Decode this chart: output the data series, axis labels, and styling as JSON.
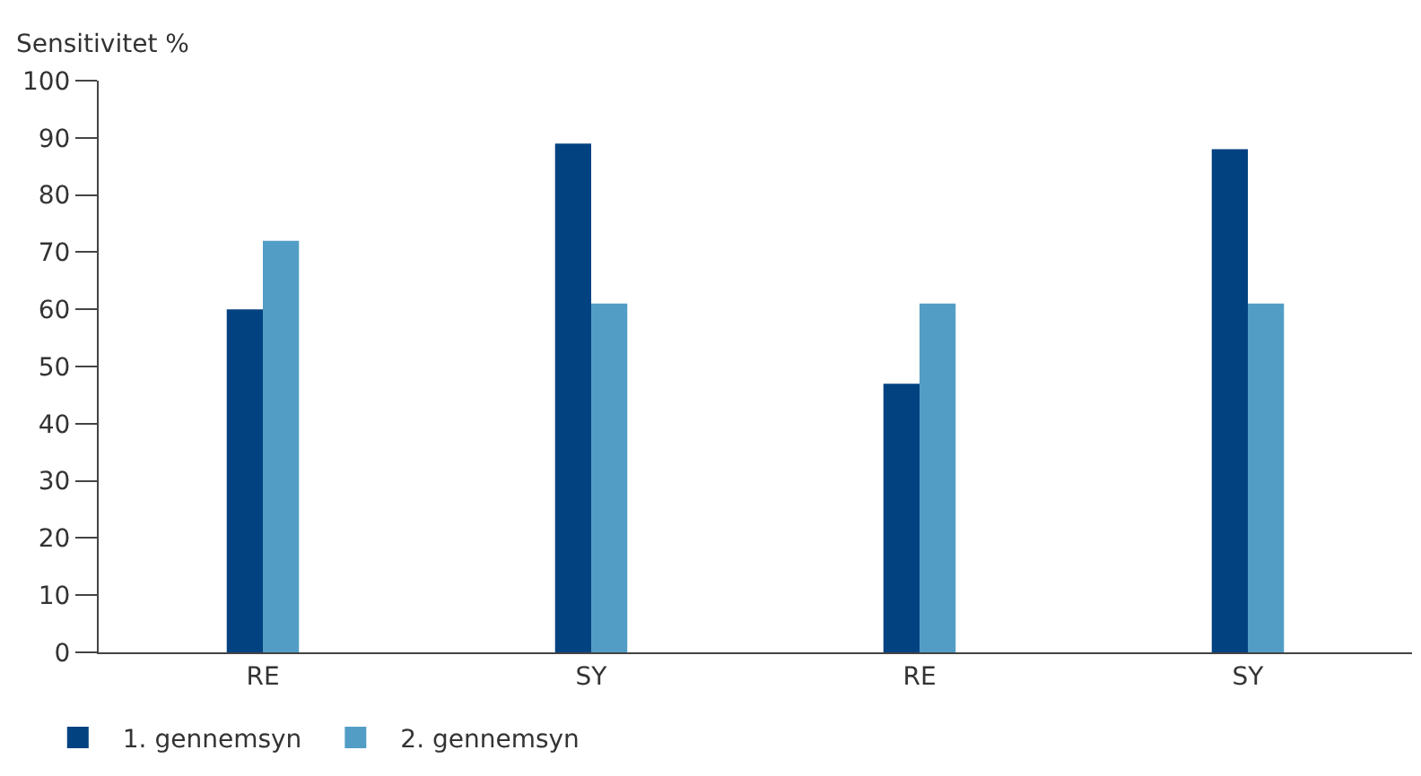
{
  "chart_data": {
    "type": "bar",
    "ylabel": "Sensitivitet %",
    "categories": [
      "RE",
      "SY",
      "RE",
      "SY"
    ],
    "series": [
      {
        "name": "1. gennemsyn",
        "color": "#024281",
        "values": [
          60,
          89,
          47,
          88
        ]
      },
      {
        "name": "2. gennemsyn",
        "color": "#529dc5",
        "values": [
          72,
          61,
          61,
          61
        ]
      }
    ],
    "ylim": [
      0,
      100
    ],
    "yticks": [
      0,
      10,
      20,
      30,
      40,
      50,
      60,
      70,
      80,
      90,
      100
    ],
    "grid": false,
    "legend": "bottom left"
  }
}
